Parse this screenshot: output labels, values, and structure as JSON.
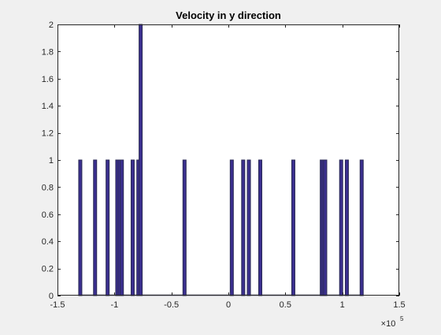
{
  "chart_data": {
    "type": "bar",
    "title": "Velocity in y direction",
    "xlabel": "",
    "ylabel": "",
    "xlim": [
      -1.5,
      1.5
    ],
    "ylim": [
      0,
      2
    ],
    "x_exponent_label": "×10",
    "x_exponent_power": "5",
    "x_ticks": [
      -1.5,
      -1,
      -0.5,
      0,
      0.5,
      1,
      1.5
    ],
    "x_tick_labels": [
      "-1.5",
      "-1",
      "-0.5",
      "0",
      "0.5",
      "1",
      "1.5"
    ],
    "y_ticks": [
      0,
      0.2,
      0.4,
      0.6,
      0.8,
      1,
      1.2,
      1.4,
      1.6,
      1.8,
      2
    ],
    "y_tick_labels": [
      "0",
      "0.2",
      "0.4",
      "0.6",
      "0.8",
      "1",
      "1.2",
      "1.4",
      "1.6",
      "1.8",
      "2"
    ],
    "bars": [
      {
        "x": -1.3,
        "value": 1
      },
      {
        "x": -1.17,
        "value": 1
      },
      {
        "x": -1.06,
        "value": 1
      },
      {
        "x": -0.975,
        "value": 1
      },
      {
        "x": -0.955,
        "value": 1
      },
      {
        "x": -0.935,
        "value": 1
      },
      {
        "x": -0.84,
        "value": 1
      },
      {
        "x": -0.79,
        "value": 1
      },
      {
        "x": -0.77,
        "value": 2
      },
      {
        "x": -0.385,
        "value": 1
      },
      {
        "x": 0.03,
        "value": 1
      },
      {
        "x": 0.13,
        "value": 1
      },
      {
        "x": 0.18,
        "value": 1
      },
      {
        "x": 0.28,
        "value": 1
      },
      {
        "x": 0.57,
        "value": 1
      },
      {
        "x": 0.82,
        "value": 1
      },
      {
        "x": 0.835,
        "value": 1
      },
      {
        "x": 0.85,
        "value": 1
      },
      {
        "x": 0.99,
        "value": 1
      },
      {
        "x": 1.04,
        "value": 1
      },
      {
        "x": 1.17,
        "value": 1
      }
    ],
    "grid": false,
    "legend": "none",
    "bar_fill_color": "#3b2f8f",
    "bar_edge_color": "#2a2a55",
    "axes_background": "#ffffff",
    "figure_background": "#f0f0f0",
    "axis_color": "#262626"
  }
}
